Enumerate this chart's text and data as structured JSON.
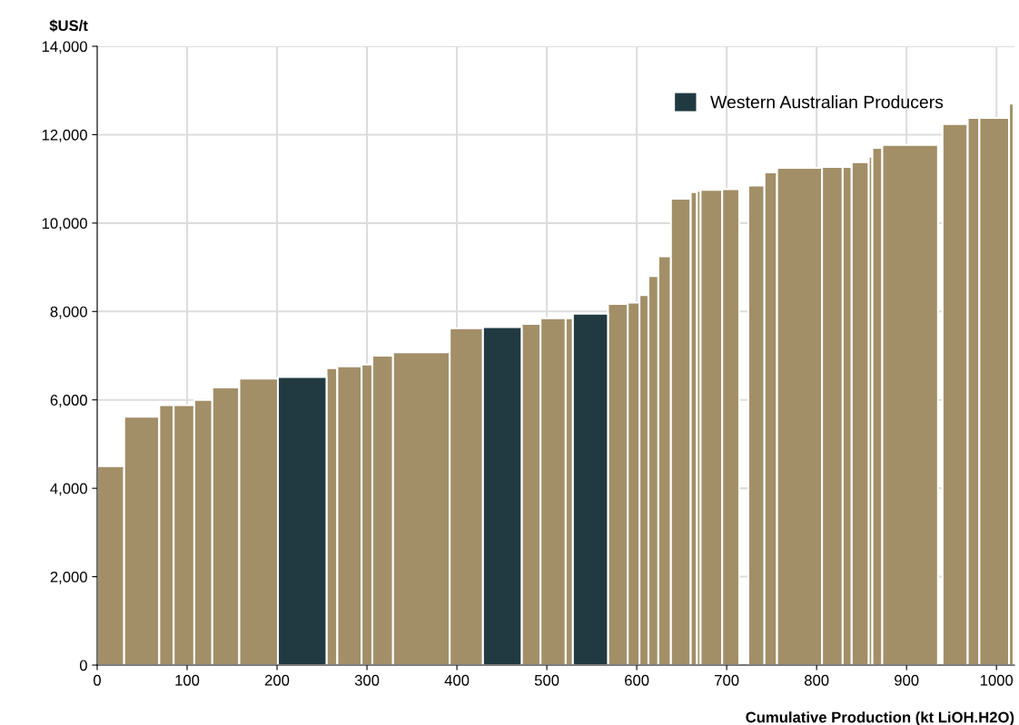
{
  "chart_data": {
    "type": "histogram",
    "xlabel": "Cumulative Production (kt LiOH.H2O)",
    "ylabel": "$US/t",
    "bins": [
      0,
      30,
      69,
      85,
      108,
      128,
      158,
      201,
      255,
      267,
      294,
      306,
      329,
      392,
      429,
      472,
      493,
      521,
      529,
      568,
      590,
      603,
      613,
      624,
      638,
      660,
      667,
      671,
      695,
      714,
      724,
      742,
      756,
      806,
      829,
      839,
      858,
      862,
      873,
      935,
      940,
      968,
      981,
      1014,
      1019
    ],
    "series": [
      {
        "color": "#a28f68",
        "values": [
          4500,
          5620,
          5880,
          5880,
          6000,
          6280,
          6480,
          null,
          6720,
          6760,
          6800,
          7000,
          7080,
          7620,
          null,
          7720,
          7850,
          7850,
          null,
          8170,
          8200,
          8370,
          8800,
          9250,
          10550,
          10700,
          10730,
          10750,
          10770,
          null,
          10850,
          11150,
          11250,
          11270,
          11270,
          11380,
          11500,
          11700,
          11770,
          null,
          12240,
          12380,
          12380,
          12700
        ]
      },
      {
        "name": "Western Australian Producers",
        "color": "#213a41",
        "values": [
          null,
          null,
          null,
          null,
          null,
          null,
          null,
          6520,
          null,
          null,
          null,
          null,
          null,
          null,
          7650,
          null,
          null,
          null,
          7950,
          null,
          null,
          null,
          null,
          null,
          null,
          null,
          null,
          null,
          null,
          null,
          null,
          null,
          null,
          null,
          null,
          null,
          null,
          null,
          null,
          null,
          null,
          null,
          null,
          null
        ]
      }
    ],
    "xlim": [
      0,
      1020
    ],
    "xticks": [
      0,
      100,
      200,
      300,
      400,
      500,
      600,
      700,
      800,
      900,
      1000
    ],
    "ylim": [
      0,
      14000
    ],
    "yticks": [
      {
        "value": 0,
        "label": "0"
      },
      {
        "value": 2000,
        "label": "2,000"
      },
      {
        "value": 4000,
        "label": "4,000"
      },
      {
        "value": 6000,
        "label": "6,000"
      },
      {
        "value": 8000,
        "label": "8,000"
      },
      {
        "value": 10000,
        "label": "10,000"
      },
      {
        "value": 12000,
        "label": "12,000"
      },
      {
        "value": 14000,
        "label": "14,000"
      }
    ],
    "grid": true,
    "legend": "top right"
  }
}
